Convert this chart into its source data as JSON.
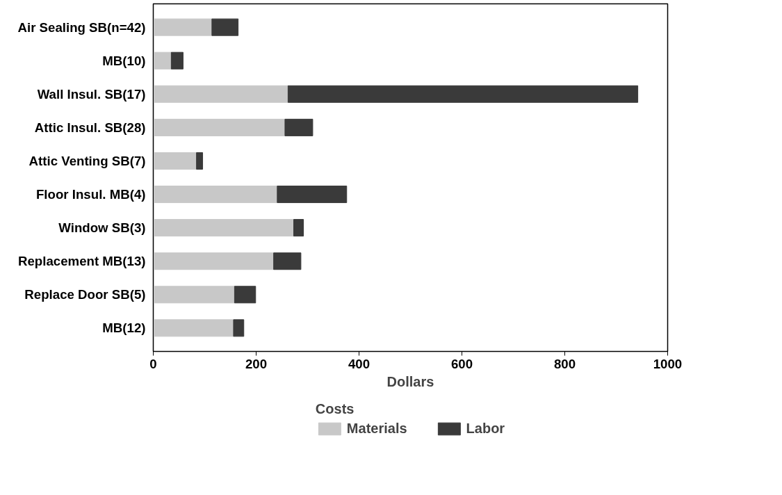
{
  "chart_data": {
    "type": "bar",
    "orientation": "horizontal",
    "stacked": true,
    "categories": [
      "Air Sealing SB(n=42)",
      "MB(10)",
      "Wall Insul. SB(17)",
      "Attic Insul. SB(28)",
      "Attic Venting SB(7)",
      "Floor Insul. MB(4)",
      "Window SB(3)",
      "Replacement MB(13)",
      "Replace Door SB(5)",
      "MB(12)"
    ],
    "series": [
      {
        "name": "Materials",
        "color": "#c8c8c8",
        "values": [
          114,
          35,
          262,
          256,
          84,
          241,
          273,
          234,
          158,
          156
        ]
      },
      {
        "name": "Labor",
        "color": "#3a3a3a",
        "values": [
          51,
          23,
          680,
          54,
          12,
          135,
          19,
          53,
          41,
          20
        ]
      }
    ],
    "xlabel": "Dollars",
    "xlim": [
      0,
      1000
    ],
    "xticks": [
      0,
      200,
      400,
      600,
      800,
      1000
    ],
    "legend": "bottom",
    "legend_title": "Costs",
    "grid": false
  }
}
